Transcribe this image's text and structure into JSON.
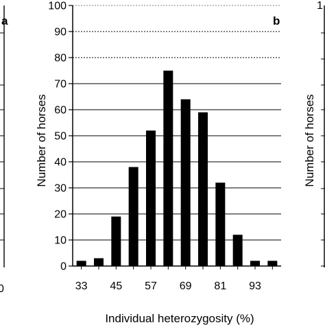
{
  "chart_data": {
    "type": "bar",
    "panel_label": "b",
    "xlabel": "Individual heterozygosity (%)",
    "ylabel": "Number of horses",
    "ylim": [
      0,
      100
    ],
    "yticks": [
      0,
      10,
      20,
      30,
      40,
      50,
      60,
      70,
      80,
      90,
      100
    ],
    "xtick_labels": [
      "33",
      "45",
      "57",
      "69",
      "81",
      "93"
    ],
    "categories": [
      "33",
      "39",
      "45",
      "51",
      "57",
      "63",
      "69",
      "75",
      "81",
      "87",
      "93",
      "99"
    ],
    "values": [
      2,
      3,
      19,
      38,
      52,
      75,
      64,
      59,
      32,
      12,
      2,
      2
    ],
    "grid": true,
    "colors": {
      "bar": "#000000",
      "grid": "#000000",
      "axis": "#000000"
    }
  },
  "neighbors": {
    "left_panel_label": "a",
    "left_partial_tick": "0",
    "right_partial_ylabel": "Number of horses",
    "right_partial_tick": "1"
  }
}
